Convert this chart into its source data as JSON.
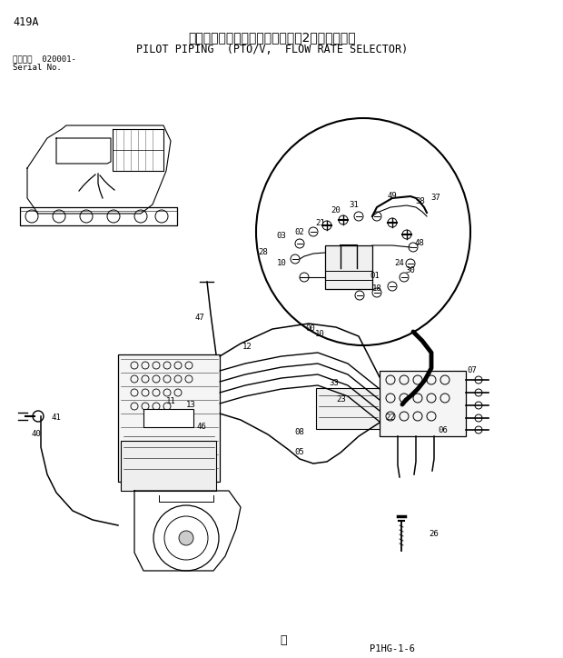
{
  "title_ja": "パイロット配管（ＰＴＯ／Ｖ，　2連切換併用）",
  "title_en": "PILOT PIPING  (PTO/V,  FLOW RATE SELECTOR)",
  "page_id": "419A",
  "serial_label": "通用号機  020001-",
  "serial_no": "Serial No.",
  "footer_sym": "ⓐ",
  "footer_right": "P1HG-1-6",
  "bg_color": "#ffffff",
  "line_color": "#000000"
}
